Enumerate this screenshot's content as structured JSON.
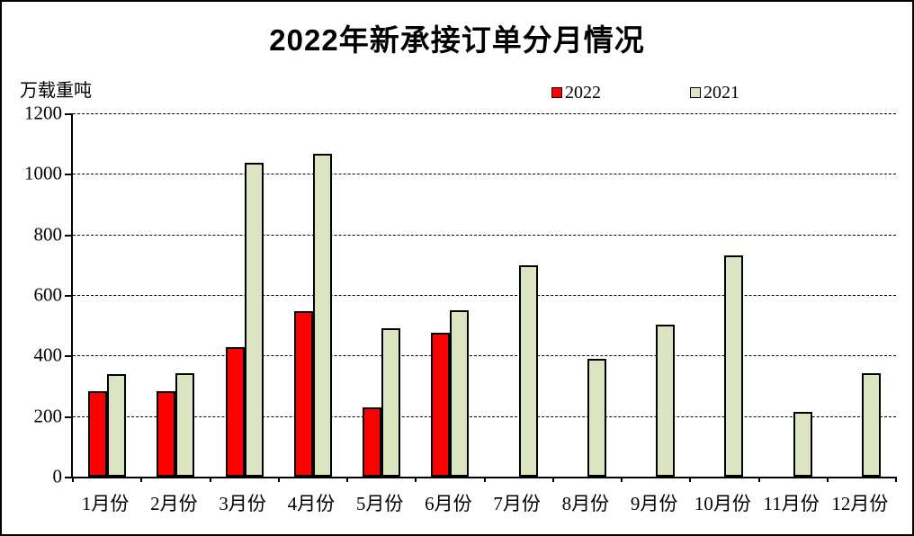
{
  "header": {
    "title": "2022年新承接订单分月情况",
    "unit_label": "万载重吨"
  },
  "chart_data": {
    "type": "bar",
    "title": "2022年新承接订单分月情况",
    "xlabel": "",
    "ylabel": "万载重吨",
    "ylim": [
      0,
      1200
    ],
    "ytick_step": 200,
    "ytick_labels": [
      "0",
      "200",
      "400",
      "600",
      "800",
      "1000",
      "1200"
    ],
    "grid": "horizontal-dashed",
    "legend_position": "top",
    "categories": [
      "1月份",
      "2月份",
      "3月份",
      "4月份",
      "5月份",
      "6月份",
      "7月份",
      "8月份",
      "9月份",
      "10月份",
      "11月份",
      "12月份"
    ],
    "series": [
      {
        "name": "2022",
        "color": "#ff0000",
        "values": [
          283,
          283,
          428,
          547,
          230,
          476,
          null,
          null,
          null,
          null,
          null,
          null
        ]
      },
      {
        "name": "2021",
        "color": "#dce5c2",
        "values": [
          340,
          342,
          1036,
          1066,
          489,
          550,
          698,
          389,
          503,
          731,
          215,
          342
        ]
      }
    ]
  }
}
